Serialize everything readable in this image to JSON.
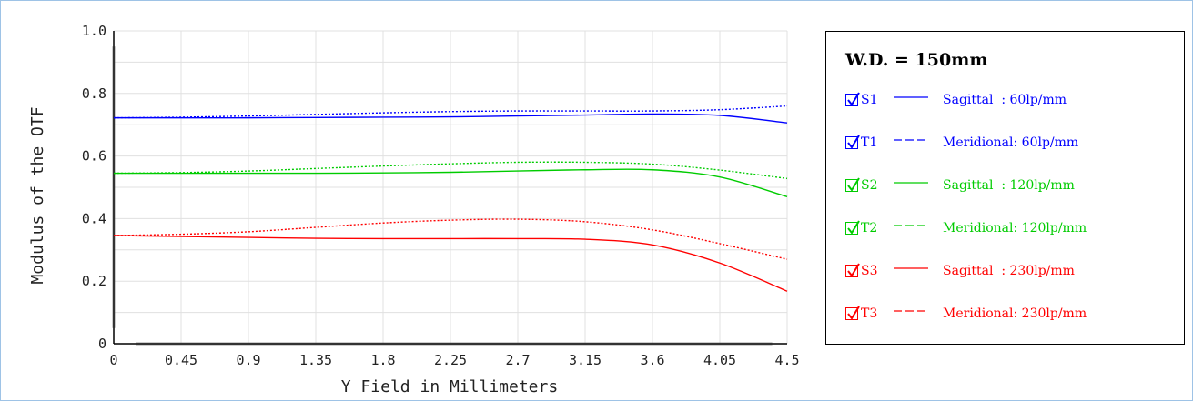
{
  "chart_data": {
    "type": "line",
    "xlabel": "Y Field in Millimeters",
    "ylabel": "Modulus of the OTF",
    "xlim": [
      0,
      4.5
    ],
    "ylim": [
      0,
      1.0
    ],
    "x_ticks": [
      0,
      0.45,
      0.9,
      1.35,
      1.8,
      2.25,
      2.7,
      3.15,
      3.6,
      4.05,
      4.5
    ],
    "x_tick_labels": [
      "0",
      "0.45",
      "0.9",
      "1.35",
      "1.8",
      "2.25",
      "2.7",
      "3.15",
      "3.6",
      "4.05",
      "4.5"
    ],
    "y_ticks": [
      0,
      0.2,
      0.4,
      0.6,
      0.8,
      1.0
    ],
    "y_tick_labels": [
      "0",
      "0.2",
      "0.4",
      "0.6",
      "0.8",
      "1.0"
    ],
    "grid": true,
    "x": [
      0,
      0.45,
      0.9,
      1.35,
      1.8,
      2.25,
      2.7,
      3.15,
      3.6,
      4.05,
      4.5
    ],
    "series": [
      {
        "name": "S1",
        "color": "#0000ff",
        "style": "solid",
        "values": [
          0.722,
          0.722,
          0.722,
          0.723,
          0.724,
          0.725,
          0.728,
          0.731,
          0.734,
          0.73,
          0.706
        ]
      },
      {
        "name": "T1",
        "color": "#0000ff",
        "style": "dashed",
        "values": [
          0.722,
          0.724,
          0.728,
          0.733,
          0.738,
          0.742,
          0.744,
          0.744,
          0.744,
          0.748,
          0.76
        ]
      },
      {
        "name": "S2",
        "color": "#00cc00",
        "style": "solid",
        "values": [
          0.545,
          0.545,
          0.545,
          0.545,
          0.546,
          0.548,
          0.552,
          0.556,
          0.556,
          0.533,
          0.47
        ]
      },
      {
        "name": "T2",
        "color": "#00cc00",
        "style": "dashed",
        "values": [
          0.545,
          0.547,
          0.552,
          0.56,
          0.568,
          0.575,
          0.58,
          0.58,
          0.574,
          0.555,
          0.528
        ]
      },
      {
        "name": "S3",
        "color": "#ff0000",
        "style": "solid",
        "values": [
          0.346,
          0.343,
          0.34,
          0.337,
          0.336,
          0.336,
          0.336,
          0.334,
          0.316,
          0.258,
          0.168
        ]
      },
      {
        "name": "T3",
        "color": "#ff0000",
        "style": "dashed",
        "values": [
          0.346,
          0.35,
          0.358,
          0.372,
          0.386,
          0.395,
          0.398,
          0.39,
          0.364,
          0.32,
          0.27
        ]
      }
    ]
  },
  "legend": {
    "title": "W.D. = 150mm",
    "items": [
      {
        "name": "S1",
        "desc": "Sagittal  : 60lp/mm",
        "color": "#0000ff",
        "style": "solid"
      },
      {
        "name": "T1",
        "desc": "Meridional: 60lp/mm",
        "color": "#0000ff",
        "style": "dashed"
      },
      {
        "name": "S2",
        "desc": "Sagittal  : 120lp/mm",
        "color": "#00cc00",
        "style": "solid"
      },
      {
        "name": "T2",
        "desc": "Meridional: 120lp/mm",
        "color": "#00cc00",
        "style": "dashed"
      },
      {
        "name": "S3",
        "desc": "Sagittal  : 230lp/mm",
        "color": "#ff0000",
        "style": "solid"
      },
      {
        "name": "T3",
        "desc": "Meridional: 230lp/mm",
        "color": "#ff0000",
        "style": "dashed"
      }
    ]
  }
}
